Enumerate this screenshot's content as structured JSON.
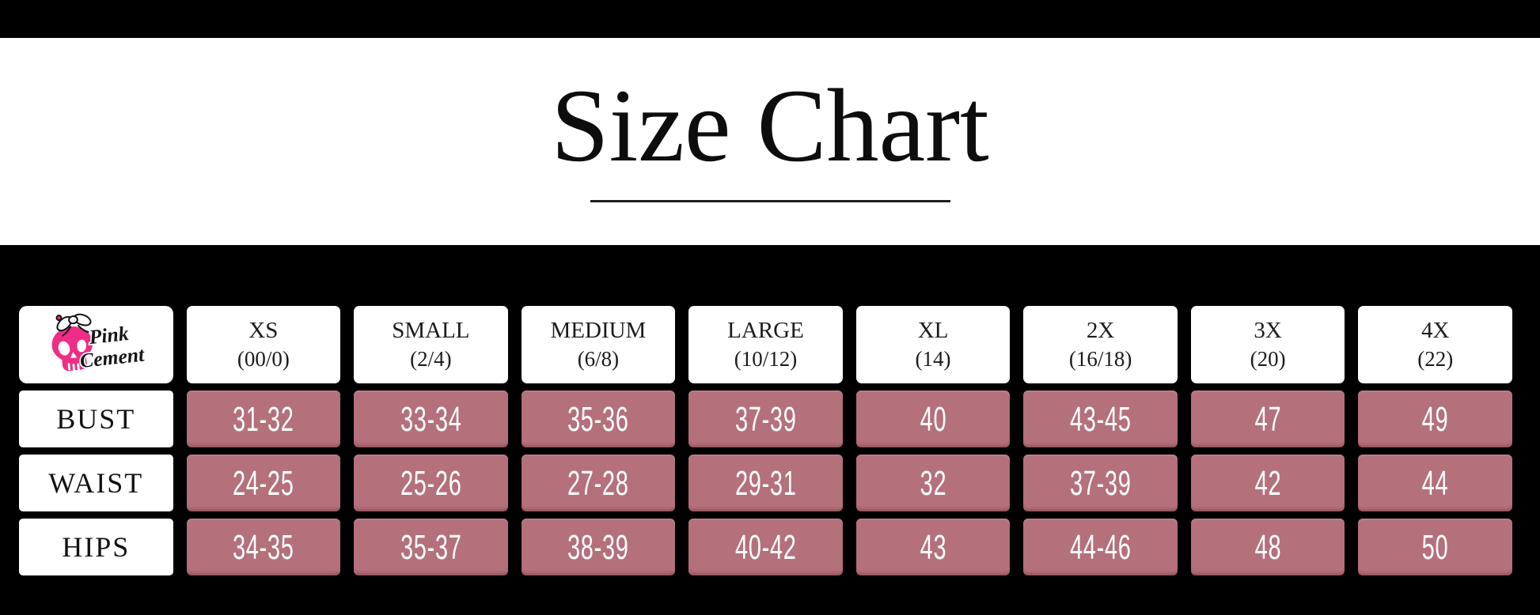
{
  "page": {
    "title": "Size Chart"
  },
  "brand": {
    "name": "Pink Cement",
    "word1": "Pink",
    "word2": "Cement"
  },
  "colors": {
    "background": "#000000",
    "band_white": "#ffffff",
    "cell_white": "#ffffff",
    "cell_rose": "#b4707b",
    "text_dark": "#1c1c1c",
    "value_white": "#ffffff",
    "brand_pink": "#ee2d86"
  },
  "chart_data": {
    "type": "table",
    "title": "Size Chart",
    "columns": [
      {
        "size": "XS",
        "range": "(00/0)"
      },
      {
        "size": "SMALL",
        "range": "(2/4)"
      },
      {
        "size": "MEDIUM",
        "range": "(6/8)"
      },
      {
        "size": "LARGE",
        "range": "(10/12)"
      },
      {
        "size": "XL",
        "range": "(14)"
      },
      {
        "size": "2X",
        "range": "(16/18)"
      },
      {
        "size": "3X",
        "range": "(20)"
      },
      {
        "size": "4X",
        "range": "(22)"
      }
    ],
    "rows": [
      {
        "label": "BUST",
        "values": [
          "31-32",
          "33-34",
          "35-36",
          "37-39",
          "40",
          "43-45",
          "47",
          "49"
        ]
      },
      {
        "label": "WAIST",
        "values": [
          "24-25",
          "25-26",
          "27-28",
          "29-31",
          "32",
          "37-39",
          "42",
          "44"
        ]
      },
      {
        "label": "HIPS",
        "values": [
          "34-35",
          "35-37",
          "38-39",
          "40-42",
          "43",
          "44-46",
          "48",
          "50"
        ]
      }
    ]
  }
}
